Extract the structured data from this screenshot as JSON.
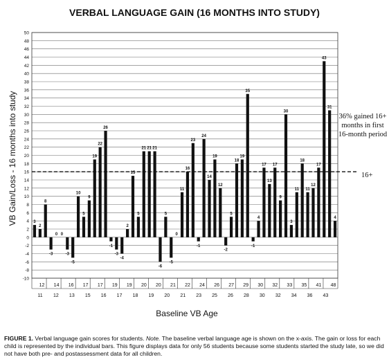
{
  "chart_data": {
    "type": "bar",
    "title": "VERBAL LANGUAGE GAIN (16 MONTHS INTO STUDY)",
    "xlabel": "Baseline VB Age",
    "ylabel": "VB Gain/Loss - 16 months into study",
    "ylim": [
      -10,
      50
    ],
    "ytick_step": 2,
    "grid": true,
    "threshold": {
      "value": 16,
      "label": "16+"
    },
    "annotation": "36% gained 16+ months in first 16-month period",
    "values": [
      3,
      2,
      8,
      -3,
      0,
      0,
      -3,
      -5,
      10,
      5,
      9,
      19,
      22,
      26,
      -1,
      -3,
      -4,
      2,
      15,
      5,
      21,
      21,
      21,
      -6,
      5,
      -5,
      0,
      11,
      16,
      23,
      -1,
      24,
      14,
      19,
      12,
      -2,
      5,
      18,
      19,
      35,
      -1,
      4,
      17,
      13,
      17,
      9,
      30,
      3,
      11,
      18,
      11,
      12,
      17,
      43,
      31,
      4
    ],
    "value_labels": [
      "3",
      "2",
      "8",
      "-3",
      "0",
      "0",
      "-3",
      "-5",
      "10",
      "5",
      "9",
      "19",
      "22",
      "26",
      "-1",
      "-3",
      "-4",
      "2",
      "15",
      "5",
      "21",
      "21",
      "21",
      "-6",
      "5",
      "-5",
      "0",
      "11",
      "16",
      "23",
      "-1",
      "24",
      "14",
      "19",
      "12",
      "-2",
      "5",
      "18",
      "19",
      "35",
      "-1",
      "4",
      "17",
      "13",
      "17",
      "9",
      "30",
      "3",
      "11",
      "18",
      "11",
      "12",
      "17",
      "43",
      "31",
      "4"
    ],
    "x_tick_rows": [
      [
        "12",
        "14",
        "16",
        "17",
        "17",
        "19",
        "19",
        "20",
        "20",
        "21",
        "22",
        "24",
        "26",
        "27",
        "29",
        "30",
        "32",
        "33",
        "35",
        "41",
        "48"
      ],
      [
        "11",
        "12",
        "13",
        "15",
        "16",
        "17",
        "18",
        "19",
        "20",
        "21",
        "23",
        "25",
        "26",
        "28",
        "30",
        "32",
        "34",
        "36",
        "43"
      ]
    ]
  },
  "caption": {
    "label": "FIGURE 1.",
    "text1": " Verbal language gain scores for students. ",
    "note": "Note.",
    "text2": " The baseline verbal language age is shown on the x-axis. The gain or loss for each child is represented by the individual bars. This figure displays data for only 56 students because some students started the study late, so we did not have both pre- and postassessment data for all children."
  }
}
